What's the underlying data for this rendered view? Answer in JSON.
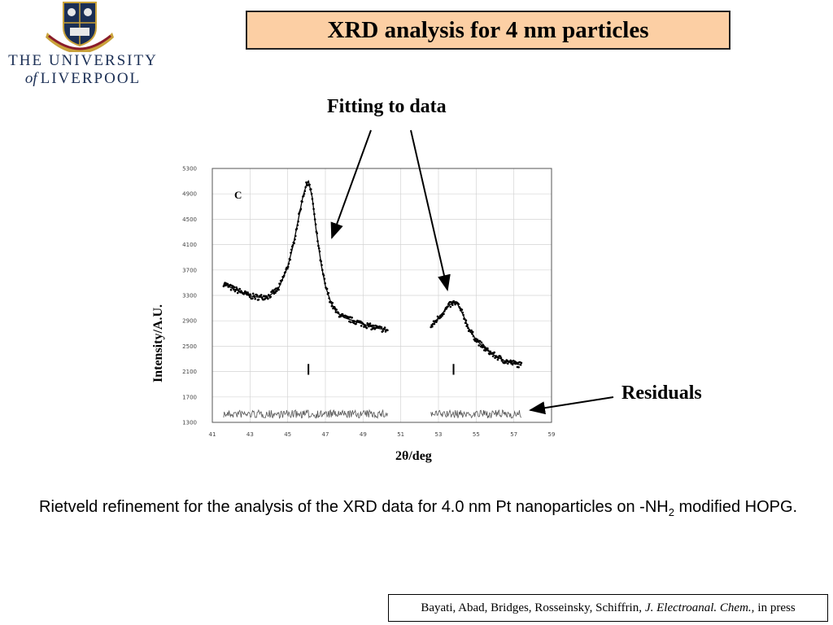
{
  "header": {
    "university_line1": "THE UNIVERSITY",
    "university_of": "of",
    "university_line2": "LIVERPOOL",
    "title": "XRD analysis for 4 nm particles"
  },
  "annotations": {
    "fitting": "Fitting to data",
    "residuals": "Residuals"
  },
  "caption": {
    "text": "Rietveld refinement for the analysis of the XRD data for 4.0 nm Pt nanoparticles on -NH",
    "subscript": "2",
    "text2": " modified HOPG."
  },
  "reference": {
    "authors": "Bayati, Abad, Bridges, Rosseinsky, Schiffrin,",
    "journal": "J. Electroanal. Chem.,",
    "status": "in press"
  },
  "colors": {
    "title_bg": "#fccfa4",
    "logo_blue": "#1b2f55",
    "logo_gold": "#c9a23a"
  },
  "chart_data": {
    "type": "line",
    "panel_label": "C",
    "xlabel": "2θ/deg",
    "ylabel": "Intensity/A.U.",
    "xlim": [
      41,
      59
    ],
    "ylim": [
      1300,
      5300
    ],
    "x_ticks": [
      "41",
      "43",
      "45",
      "47",
      "49",
      "51",
      "53",
      "55",
      "57",
      "59"
    ],
    "y_ticks": [
      "1300",
      "1700",
      "2100",
      "2500",
      "2900",
      "3300",
      "3700",
      "4100",
      "4500",
      "4900",
      "5300"
    ],
    "grid": true,
    "reflection_markers": [
      46.1,
      53.8
    ],
    "series": [
      {
        "segment": 1,
        "x": [
          41.6,
          42.0,
          42.5,
          43.0,
          43.5,
          44.0,
          44.5,
          45.0,
          45.3,
          45.6,
          45.8,
          46.0,
          46.1,
          46.3,
          46.5,
          46.8,
          47.0,
          47.3,
          47.6,
          48.0,
          48.5,
          49.0,
          49.5,
          50.0,
          50.3
        ],
        "y": [
          3490,
          3420,
          3360,
          3290,
          3270,
          3290,
          3400,
          3750,
          4100,
          4550,
          4850,
          5050,
          5100,
          4850,
          4350,
          3750,
          3450,
          3180,
          3030,
          2950,
          2900,
          2850,
          2800,
          2770,
          2750
        ]
      },
      {
        "segment": 2,
        "x": [
          52.6,
          53.0,
          53.3,
          53.6,
          53.8,
          54.0,
          54.3,
          54.6,
          55.0,
          55.5,
          56.0,
          56.5,
          57.0,
          57.4
        ],
        "y": [
          2800,
          2950,
          3050,
          3150,
          3180,
          3170,
          3000,
          2780,
          2600,
          2450,
          2350,
          2270,
          2230,
          2200
        ]
      }
    ]
  }
}
